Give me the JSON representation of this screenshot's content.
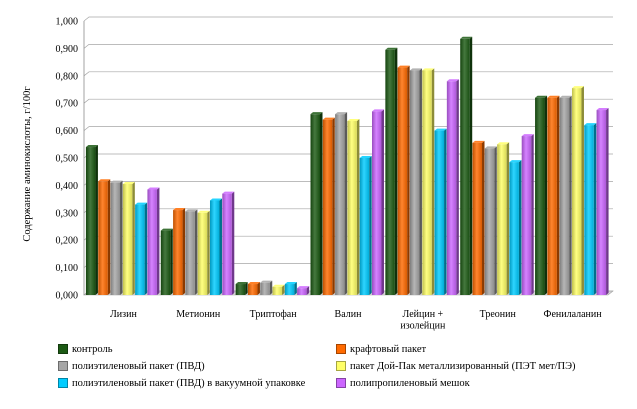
{
  "chart_data": {
    "type": "bar",
    "title": "",
    "xlabel": "",
    "ylabel": "Содержание аминокислоты, г/100г",
    "ylim": [
      0,
      1.0
    ],
    "y_ticks": [
      "0,000",
      "0,100",
      "0,200",
      "0,300",
      "0,400",
      "0,500",
      "0,600",
      "0,700",
      "0,800",
      "0,900",
      "1,000"
    ],
    "grid": true,
    "legend_position": "bottom",
    "categories": [
      "Лизин",
      "Метионин",
      "Триптофан",
      "Валин",
      "Лейцин + изолейцин",
      "Треонин",
      "Фенилаланин"
    ],
    "category_label_lines": [
      [
        "Лизин"
      ],
      [
        "Метионин"
      ],
      [
        "Триптофан"
      ],
      [
        "Валин"
      ],
      [
        "Лейцин +",
        "изолейцин"
      ],
      [
        "Треонин"
      ],
      [
        "Фенилаланин"
      ]
    ],
    "series": [
      {
        "name": "контроль",
        "color": "#1c5a14",
        "values": [
          0.54,
          0.235,
          0.04,
          0.66,
          0.895,
          0.935,
          0.72
        ]
      },
      {
        "name": "крафтовый пакет",
        "color": "#ff6a00",
        "values": [
          0.415,
          0.31,
          0.04,
          0.64,
          0.83,
          0.555,
          0.72
        ]
      },
      {
        "name": "полиэтиленовый пакет (ПВД)",
        "color": "#a6a6a6",
        "values": [
          0.41,
          0.305,
          0.045,
          0.66,
          0.82,
          0.535,
          0.72
        ]
      },
      {
        "name": "пакет Дой-Пак металлизированный (ПЭТ мет/ПЭ)",
        "color": "#ffff66",
        "values": [
          0.405,
          0.3,
          0.03,
          0.635,
          0.82,
          0.55,
          0.755
        ]
      },
      {
        "name": "полиэтиленовый пакет (ПВД) в вакуумной упаковке",
        "color": "#00ccff",
        "values": [
          0.33,
          0.345,
          0.04,
          0.5,
          0.6,
          0.485,
          0.62
        ]
      },
      {
        "name": "полипропиленовый мешок",
        "color": "#cc66ff",
        "values": [
          0.385,
          0.37,
          0.025,
          0.67,
          0.78,
          0.58,
          0.675
        ]
      }
    ]
  }
}
